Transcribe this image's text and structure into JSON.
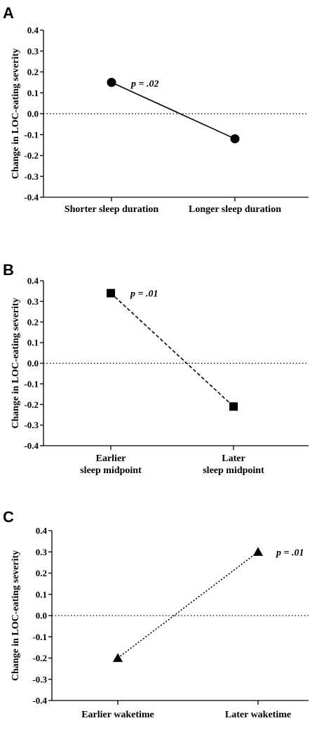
{
  "chart_data": [
    {
      "panel": "A",
      "type": "line",
      "ylabel": "Change in LOC-eating severity",
      "ylim": [
        -0.4,
        0.4
      ],
      "yticks": [
        "0.4",
        "0.3",
        "0.2",
        "0.1",
        "0.0",
        "-0.1",
        "-0.2",
        "-0.3",
        "-0.4"
      ],
      "categories": [
        [
          "Shorter sleep duration"
        ],
        [
          "Longer sleep duration"
        ]
      ],
      "values": [
        0.15,
        -0.12
      ],
      "marker": "circle",
      "line_style": "solid",
      "annotation": "p = .02",
      "reference_line": 0.0
    },
    {
      "panel": "B",
      "type": "line",
      "ylabel": "Change in LOC-eating severity",
      "ylim": [
        -0.4,
        0.4
      ],
      "yticks": [
        "0.4",
        "0.3",
        "0.2",
        "0.1",
        "0.0",
        "-0.1",
        "-0.2",
        "-0.3",
        "-0.4"
      ],
      "categories": [
        [
          "Earlier",
          "sleep midpoint"
        ],
        [
          "Later",
          "sleep midpoint"
        ]
      ],
      "values": [
        0.34,
        -0.21
      ],
      "marker": "square",
      "line_style": "dashed",
      "annotation": "p = .01",
      "reference_line": 0.0
    },
    {
      "panel": "C",
      "type": "line",
      "ylabel": "Change in LOC-eating severity",
      "ylim": [
        -0.4,
        0.4
      ],
      "yticks": [
        "0.4",
        "0.3",
        "0.2",
        "0.1",
        "0.0",
        "-0.1",
        "-0.2",
        "-0.3",
        "-0.4"
      ],
      "categories": [
        [
          "Earlier waketime"
        ],
        [
          "Later waketime"
        ]
      ],
      "values": [
        -0.2,
        0.3
      ],
      "marker": "triangle",
      "line_style": "dotted",
      "annotation": "p = .01",
      "reference_line": 0.0
    }
  ]
}
